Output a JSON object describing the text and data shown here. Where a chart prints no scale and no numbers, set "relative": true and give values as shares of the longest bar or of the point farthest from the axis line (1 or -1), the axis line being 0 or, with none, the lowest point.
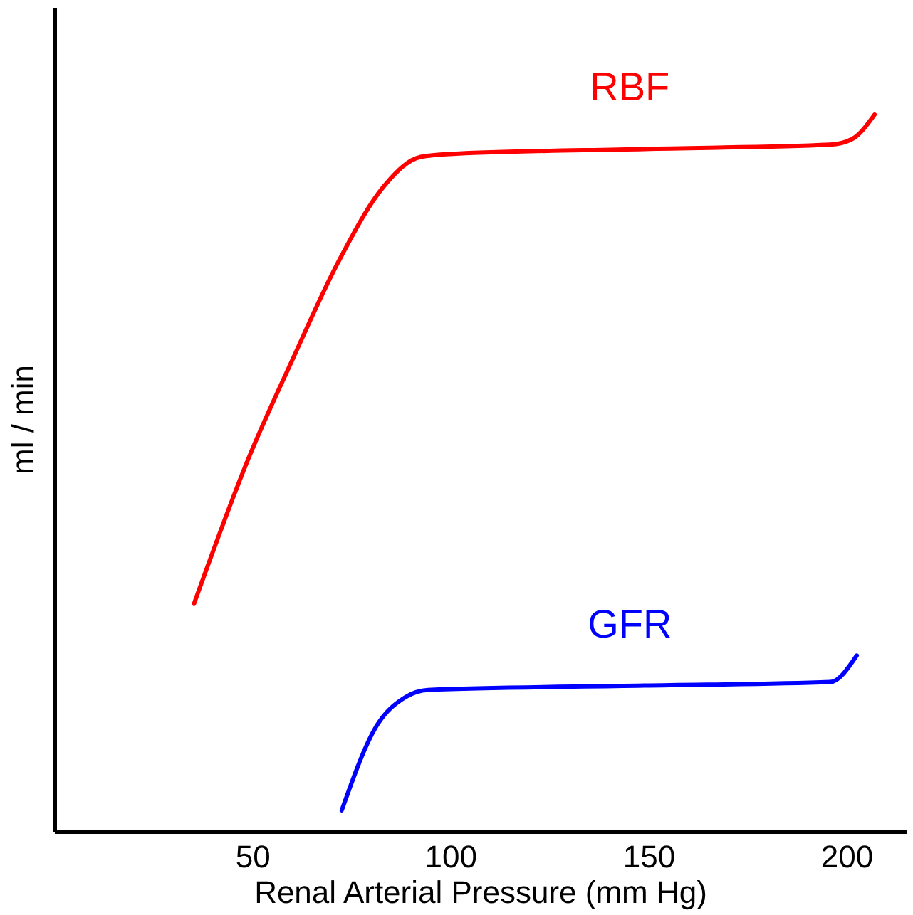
{
  "chart_data": {
    "type": "line",
    "xlabel": "Renal Arterial Pressure (mm Hg)",
    "ylabel": "ml / min",
    "relative": true,
    "xlim": [
      0,
      215
    ],
    "xticks": [
      50,
      100,
      150,
      200
    ],
    "grid": false,
    "legend": false,
    "line_style": "solid",
    "marker": "none",
    "series": [
      {
        "name": "RBF",
        "color": "#ff0000",
        "x": [
          35.3,
          49.2,
          60,
          71.8,
          83.1,
          92.5,
          100,
          148.9,
          195.9,
          201.5,
          207.1
        ],
        "values": [
          0.317,
          0.522,
          0.656,
          0.795,
          0.899,
          0.941,
          0.945,
          0.952,
          0.958,
          0.966,
          1.0
        ]
      },
      {
        "name": "GFR",
        "color": "#0000ff",
        "x": [
          72.6,
          81.2,
          88.7,
          94.4,
          148.9,
          195.9,
          202.6
        ],
        "values": [
          0.029,
          0.145,
          0.187,
          0.197,
          0.203,
          0.208,
          0.245
        ]
      }
    ]
  }
}
